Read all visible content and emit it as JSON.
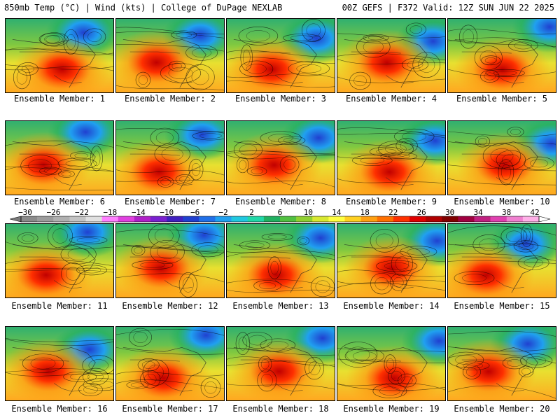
{
  "header": {
    "left": "850mb Temp (°C) | Wind (kts) | College of DuPage NEXLAB",
    "right": "00Z GEFS | F372 Valid: 12Z SUN JUN 22 2025"
  },
  "caption_prefix": "Ensemble Member:",
  "members": [
    {
      "label": "Ensemble Member: 1"
    },
    {
      "label": "Ensemble Member: 2"
    },
    {
      "label": "Ensemble Member: 3"
    },
    {
      "label": "Ensemble Member: 4"
    },
    {
      "label": "Ensemble Member: 5"
    },
    {
      "label": "Ensemble Member: 6"
    },
    {
      "label": "Ensemble Member: 7"
    },
    {
      "label": "Ensemble Member: 8"
    },
    {
      "label": "Ensemble Member: 9"
    },
    {
      "label": "Ensemble Member: 10"
    },
    {
      "label": "Ensemble Member: 11"
    },
    {
      "label": "Ensemble Member: 12"
    },
    {
      "label": "Ensemble Member: 13"
    },
    {
      "label": "Ensemble Member: 14"
    },
    {
      "label": "Ensemble Member: 15"
    },
    {
      "label": "Ensemble Member: 16"
    },
    {
      "label": "Ensemble Member: 17"
    },
    {
      "label": "Ensemble Member: 18"
    },
    {
      "label": "Ensemble Member: 19"
    },
    {
      "label": "Ensemble Member: 20"
    }
  ],
  "colorbar": {
    "labels": [
      "−30",
      "−26",
      "−22",
      "−18",
      "−14",
      "−10",
      "−6",
      "−2",
      "2",
      "6",
      "10",
      "14",
      "18",
      "22",
      "26",
      "30",
      "34",
      "38",
      "42"
    ],
    "colors": [
      "#8a8a8a",
      "#9c9c9c",
      "#b0b0b0",
      "#c4c4c4",
      "#e0e0e0",
      "#ff80ff",
      "#e040e0",
      "#b020c8",
      "#7a20d0",
      "#4020c0",
      "#2040d0",
      "#2070e8",
      "#20a0f0",
      "#20c8e0",
      "#20d8a8",
      "#20b060",
      "#50c040",
      "#90d030",
      "#d8e830",
      "#ffff40",
      "#ffd020",
      "#ffa010",
      "#ff7000",
      "#ff3000",
      "#e00000",
      "#b00000",
      "#800000",
      "#a00040",
      "#c02080",
      "#e040b0",
      "#f080d0",
      "#ffb0e8"
    ]
  }
}
